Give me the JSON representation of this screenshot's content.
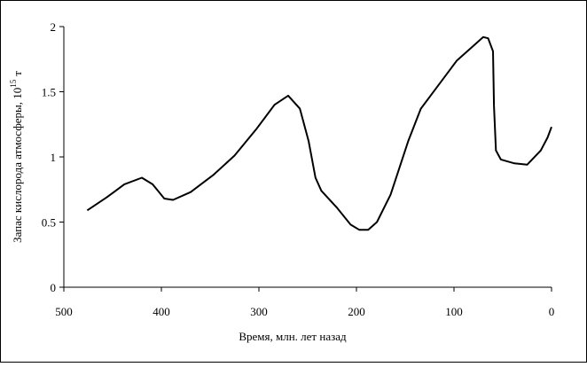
{
  "chart_data": {
    "type": "line",
    "xlabel": "Время, млн. лет назад",
    "ylabel": "Запас кислорода атмосферы, 10",
    "ylabel_sup": "15",
    "ylabel_unit": "т",
    "x": [
      476,
      456,
      438,
      420,
      409,
      397,
      388,
      370,
      347,
      325,
      302,
      284,
      270,
      258,
      249,
      242,
      236,
      220,
      206,
      197,
      188,
      179,
      165,
      147,
      134,
      115,
      97,
      79,
      70,
      65,
      60,
      59,
      57,
      52,
      38,
      25,
      11,
      4,
      0
    ],
    "series": [
      {
        "color": "#000000",
        "values": [
          0.59,
          0.69,
          0.79,
          0.84,
          0.79,
          0.68,
          0.67,
          0.73,
          0.86,
          1.01,
          1.22,
          1.4,
          1.47,
          1.37,
          1.12,
          0.84,
          0.74,
          0.61,
          0.48,
          0.44,
          0.44,
          0.5,
          0.71,
          1.12,
          1.37,
          1.56,
          1.74,
          1.86,
          1.92,
          1.91,
          1.81,
          1.39,
          1.05,
          0.98,
          0.95,
          0.94,
          1.05,
          1.15,
          1.23
        ]
      }
    ],
    "xlim": [
      500,
      0
    ],
    "xticks": [
      500,
      400,
      300,
      200,
      100,
      0
    ],
    "ylim": [
      0,
      2
    ],
    "yticks": [
      0,
      0.5,
      1,
      1.5,
      2
    ]
  }
}
